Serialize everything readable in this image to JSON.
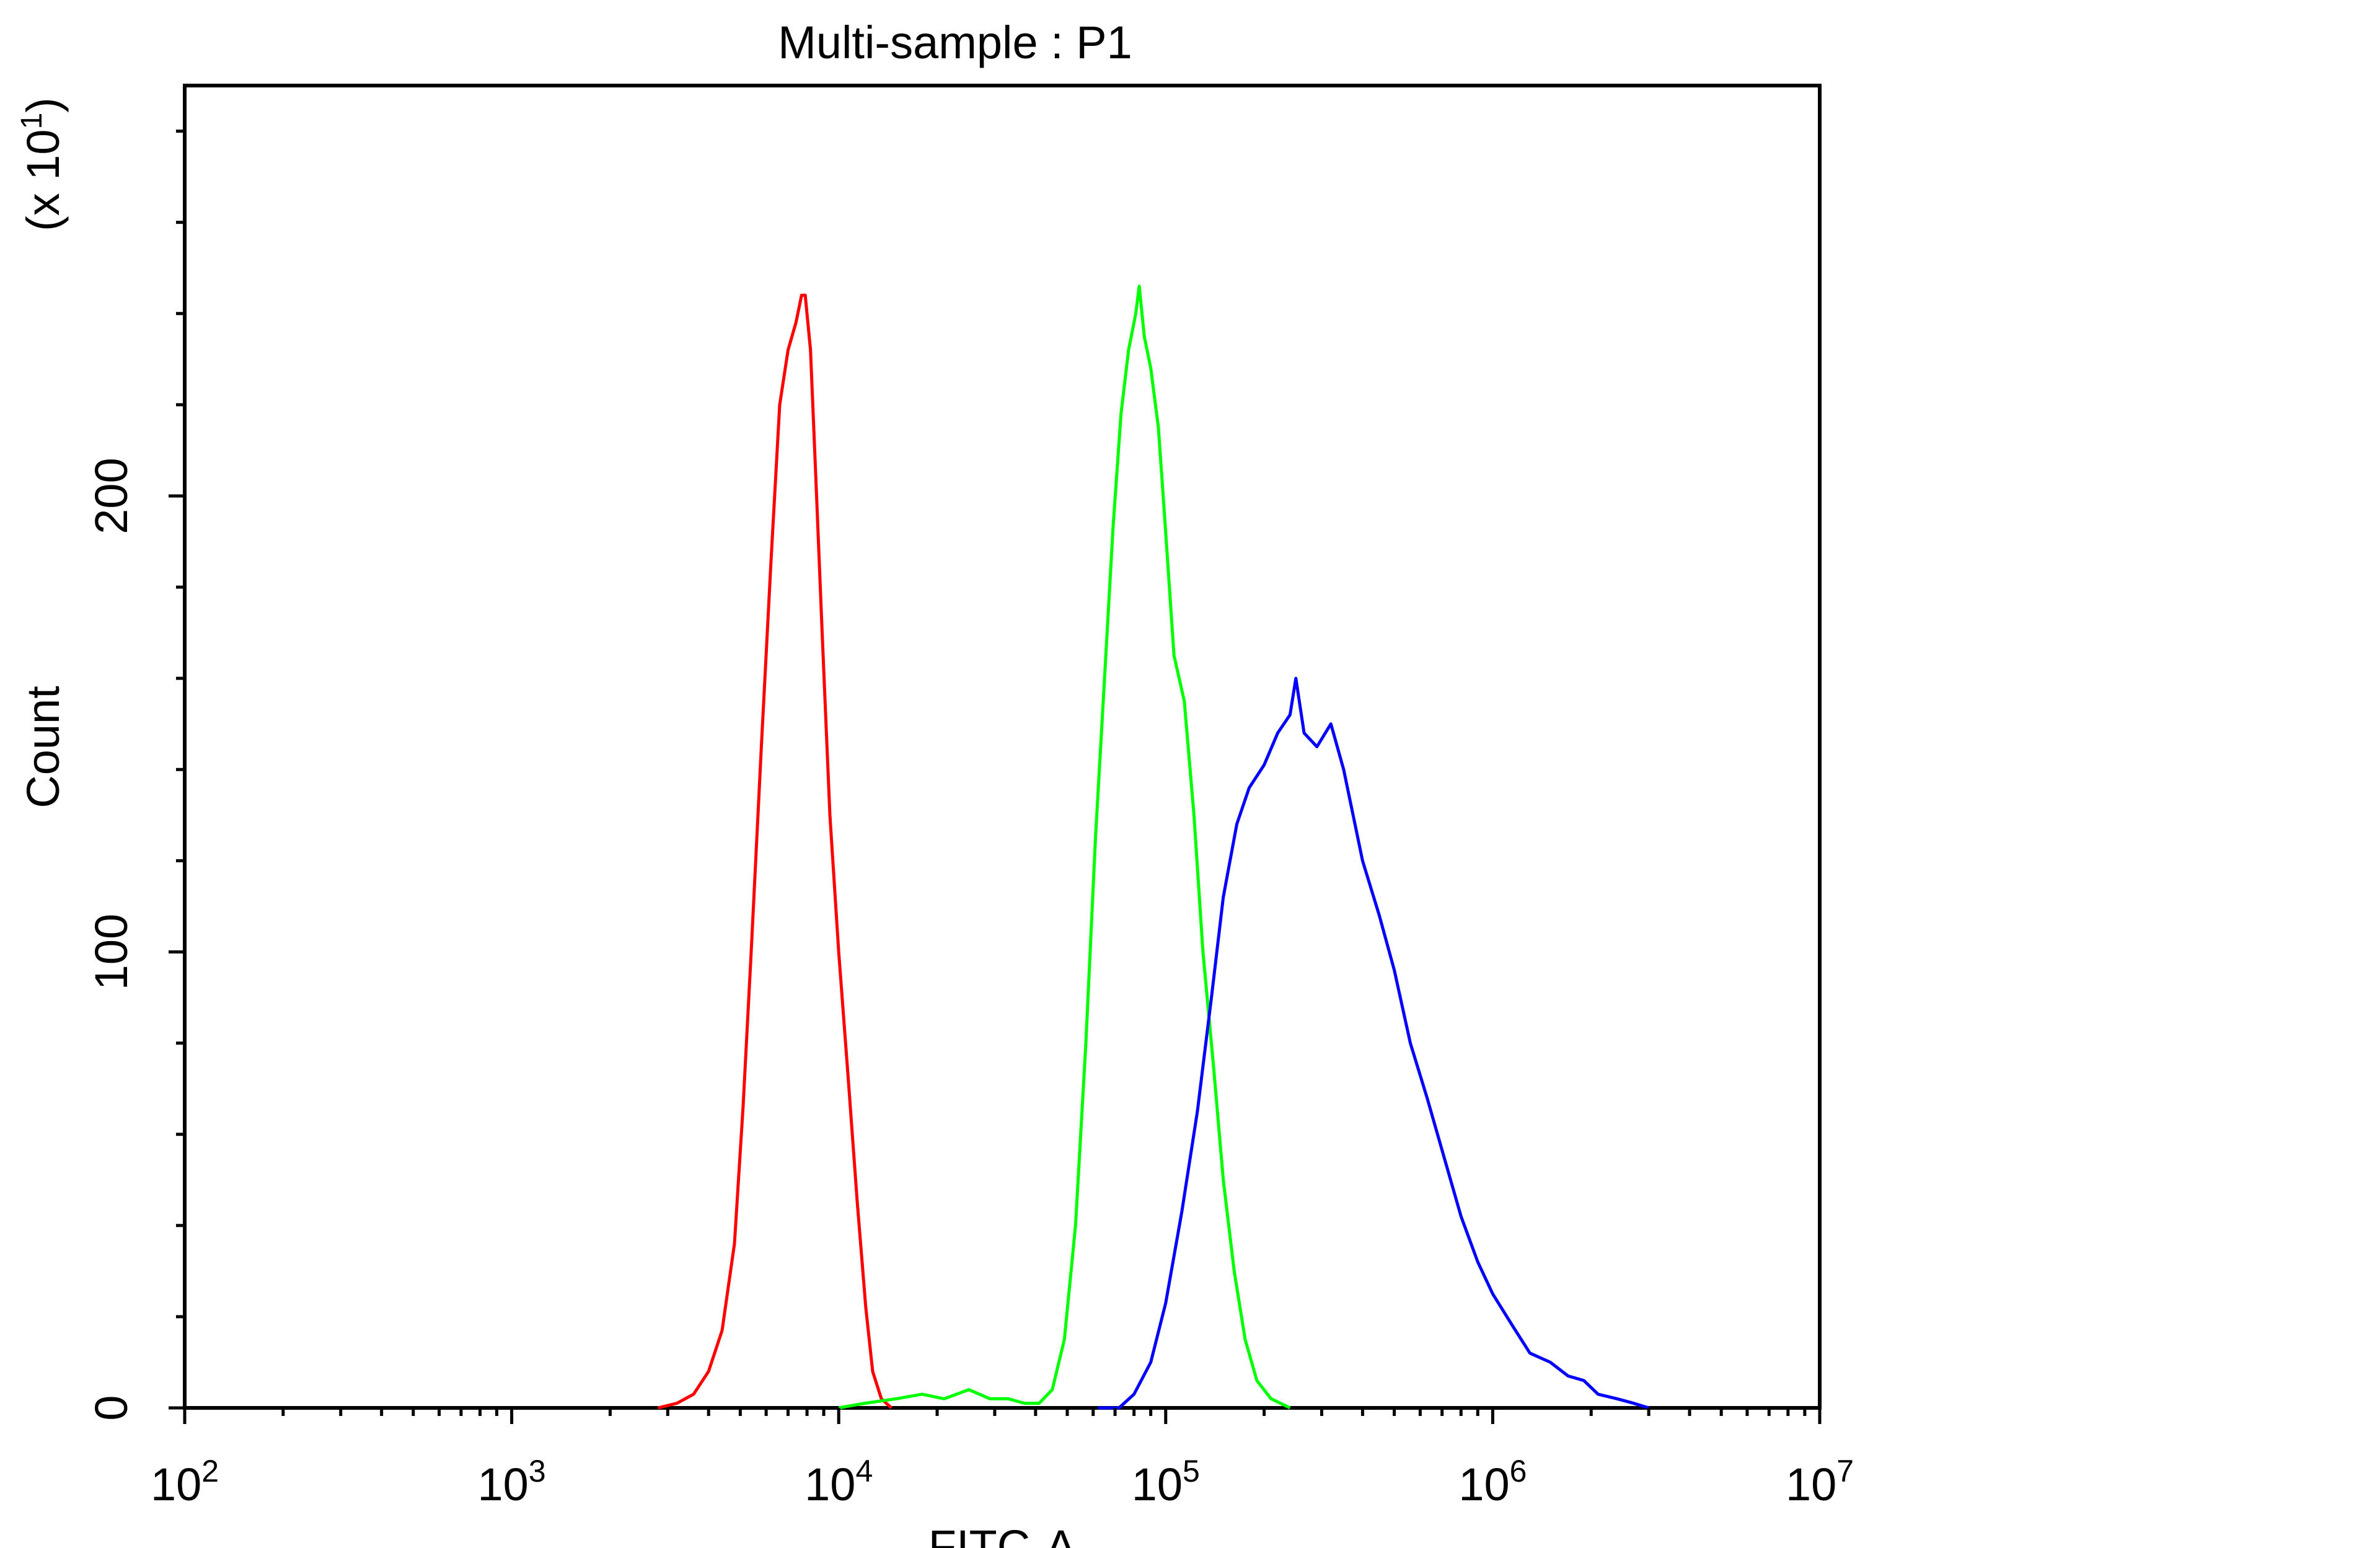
{
  "chart_data": {
    "type": "line",
    "title": "Multi-sample : P1",
    "xlabel": "FITC-A",
    "ylabel": "Count",
    "ylabel_multiplier": "(x 10",
    "ylabel_multiplier_exp": "1",
    "ylabel_multiplier_close": ")",
    "x_scale": "log",
    "xlim": [
      100,
      10000000
    ],
    "ylim": [
      0,
      290
    ],
    "x_ticks": [
      {
        "value": 100,
        "base": "10",
        "exp": "2"
      },
      {
        "value": 1000,
        "base": "10",
        "exp": "3"
      },
      {
        "value": 10000,
        "base": "10",
        "exp": "4"
      },
      {
        "value": 100000,
        "base": "10",
        "exp": "5"
      },
      {
        "value": 1000000,
        "base": "10",
        "exp": "6"
      },
      {
        "value": 10000000,
        "base": "10",
        "exp": "7"
      }
    ],
    "y_ticks": [
      {
        "value": 0,
        "label": "0"
      },
      {
        "value": 100,
        "label": "100"
      },
      {
        "value": 200,
        "label": "200"
      }
    ],
    "grid": false,
    "legend": "none",
    "series": [
      {
        "color": "#ff0000",
        "points": [
          [
            2800,
            0
          ],
          [
            3200,
            1
          ],
          [
            3600,
            3
          ],
          [
            4000,
            8
          ],
          [
            4400,
            17
          ],
          [
            4800,
            36
          ],
          [
            5100,
            66
          ],
          [
            5400,
            100
          ],
          [
            5800,
            145
          ],
          [
            6200,
            185
          ],
          [
            6600,
            220
          ],
          [
            7000,
            232
          ],
          [
            7400,
            238
          ],
          [
            7700,
            244
          ],
          [
            7900,
            244
          ],
          [
            8200,
            232
          ],
          [
            8500,
            205
          ],
          [
            8900,
            170
          ],
          [
            9400,
            130
          ],
          [
            10000,
            100
          ],
          [
            10700,
            72
          ],
          [
            11400,
            45
          ],
          [
            12100,
            22
          ],
          [
            12700,
            8
          ],
          [
            13500,
            2
          ],
          [
            14500,
            0
          ]
        ]
      },
      {
        "color": "#00ff00",
        "points": [
          [
            10000,
            0
          ],
          [
            12000,
            1
          ],
          [
            15000,
            2
          ],
          [
            18000,
            3
          ],
          [
            21000,
            2
          ],
          [
            25000,
            4
          ],
          [
            29000,
            2
          ],
          [
            33000,
            2
          ],
          [
            37000,
            1
          ],
          [
            41000,
            1
          ],
          [
            45000,
            4
          ],
          [
            49000,
            15
          ],
          [
            53000,
            40
          ],
          [
            57000,
            80
          ],
          [
            61000,
            125
          ],
          [
            65000,
            160
          ],
          [
            69000,
            193
          ],
          [
            73000,
            218
          ],
          [
            77000,
            232
          ],
          [
            81000,
            240
          ],
          [
            83000,
            246
          ],
          [
            86000,
            235
          ],
          [
            90000,
            228
          ],
          [
            95000,
            215
          ],
          [
            100000,
            192
          ],
          [
            106000,
            165
          ],
          [
            114000,
            155
          ],
          [
            122000,
            130
          ],
          [
            130000,
            100
          ],
          [
            140000,
            75
          ],
          [
            150000,
            50
          ],
          [
            162000,
            30
          ],
          [
            175000,
            15
          ],
          [
            190000,
            6
          ],
          [
            210000,
            2
          ],
          [
            240000,
            0
          ]
        ]
      },
      {
        "color": "#0000ff",
        "points": [
          [
            62000,
            0
          ],
          [
            72000,
            0
          ],
          [
            80000,
            3
          ],
          [
            90000,
            10
          ],
          [
            100000,
            23
          ],
          [
            112000,
            43
          ],
          [
            125000,
            65
          ],
          [
            138000,
            90
          ],
          [
            150000,
            112
          ],
          [
            165000,
            128
          ],
          [
            180000,
            136
          ],
          [
            200000,
            141
          ],
          [
            220000,
            148
          ],
          [
            240000,
            152
          ],
          [
            250000,
            160
          ],
          [
            265000,
            148
          ],
          [
            290000,
            145
          ],
          [
            320000,
            150
          ],
          [
            350000,
            140
          ],
          [
            400000,
            120
          ],
          [
            450000,
            108
          ],
          [
            500000,
            96
          ],
          [
            560000,
            80
          ],
          [
            630000,
            68
          ],
          [
            710000,
            55
          ],
          [
            800000,
            42
          ],
          [
            900000,
            32
          ],
          [
            1000000,
            25
          ],
          [
            1150000,
            18
          ],
          [
            1300000,
            12
          ],
          [
            1500000,
            10
          ],
          [
            1700000,
            7
          ],
          [
            1900000,
            6
          ],
          [
            2100000,
            3
          ],
          [
            2400000,
            2
          ],
          [
            2700000,
            1
          ],
          [
            3000000,
            0
          ]
        ]
      }
    ]
  }
}
